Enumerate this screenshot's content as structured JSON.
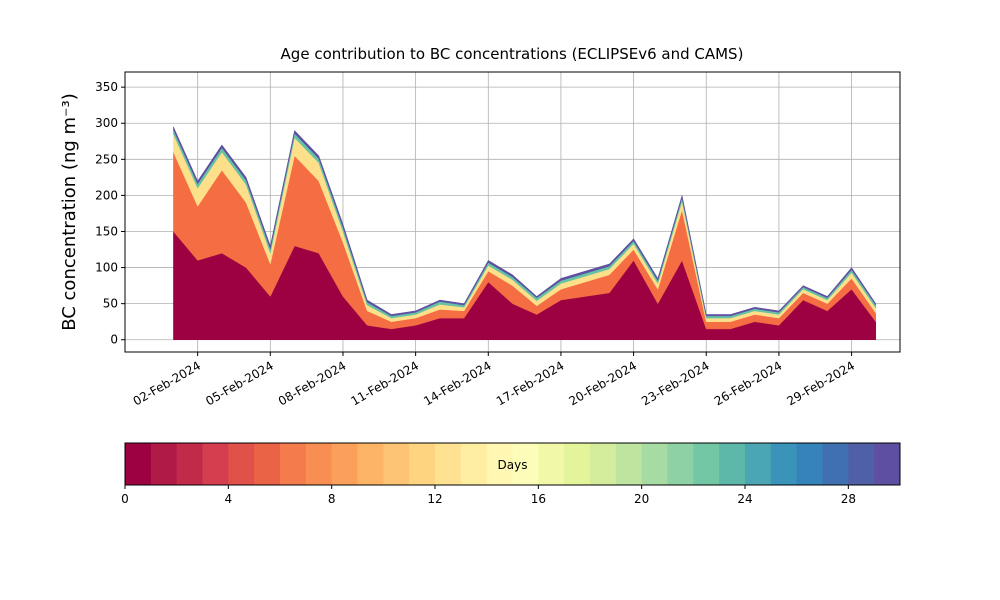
{
  "chart_data": {
    "type": "stacked_area",
    "title": "Age contribution to BC concentrations (ECLIPSEv6 and CAMS)",
    "y_label": "BC concentration (ng m⁻³)",
    "x": [
      "2024-02-01",
      "2024-02-02",
      "2024-02-03",
      "2024-02-04",
      "2024-02-05",
      "2024-02-06",
      "2024-02-07",
      "2024-02-08",
      "2024-02-09",
      "2024-02-10",
      "2024-02-11",
      "2024-02-12",
      "2024-02-13",
      "2024-02-14",
      "2024-02-15",
      "2024-02-16",
      "2024-02-17",
      "2024-02-18",
      "2024-02-19",
      "2024-02-20",
      "2024-02-21",
      "2024-02-22",
      "2024-02-23",
      "2024-02-24",
      "2024-02-25",
      "2024-02-26",
      "2024-02-27",
      "2024-02-28",
      "2024-02-29",
      "2024-03-01"
    ],
    "series": [
      {
        "color": "#9e0142",
        "values": [
          150,
          110,
          120,
          100,
          60,
          130,
          120,
          60,
          20,
          15,
          20,
          30,
          30,
          80,
          50,
          35,
          55,
          60,
          65,
          110,
          50,
          110,
          15,
          15,
          25,
          20,
          55,
          40,
          70,
          25
        ]
      },
      {
        "color": "#f46d43",
        "values": [
          110,
          75,
          115,
          90,
          45,
          125,
          100,
          75,
          20,
          10,
          10,
          12,
          10,
          15,
          25,
          12,
          15,
          20,
          25,
          15,
          20,
          70,
          10,
          10,
          10,
          10,
          10,
          10,
          15,
          12
        ]
      },
      {
        "color": "#fee08b",
        "values": [
          25,
          25,
          25,
          25,
          15,
          25,
          25,
          15,
          8,
          5,
          5,
          7,
          5,
          8,
          8,
          7,
          8,
          8,
          8,
          8,
          8,
          12,
          5,
          5,
          5,
          5,
          5,
          5,
          8,
          7
        ]
      },
      {
        "color": "#66c2a5",
        "values": [
          6,
          6,
          6,
          6,
          6,
          6,
          6,
          6,
          4,
          3,
          3,
          4,
          3,
          4,
          4,
          4,
          4,
          4,
          4,
          4,
          4,
          5,
          3,
          3,
          3,
          3,
          3,
          3,
          4,
          4
        ]
      },
      {
        "color": "#5e4fa2",
        "values": [
          4,
          4,
          4,
          4,
          4,
          4,
          4,
          4,
          3,
          2,
          2,
          2,
          2,
          3,
          3,
          2,
          3,
          3,
          3,
          3,
          3,
          3,
          2,
          2,
          2,
          2,
          2,
          2,
          3,
          2
        ]
      }
    ],
    "xlim": [
      "2024-01-30",
      "2024-03-02"
    ],
    "xticks": [
      {
        "value": "2024-02-02",
        "label": "02-Feb-2024"
      },
      {
        "value": "2024-02-05",
        "label": "05-Feb-2024"
      },
      {
        "value": "2024-02-08",
        "label": "08-Feb-2024"
      },
      {
        "value": "2024-02-11",
        "label": "11-Feb-2024"
      },
      {
        "value": "2024-02-14",
        "label": "14-Feb-2024"
      },
      {
        "value": "2024-02-17",
        "label": "17-Feb-2024"
      },
      {
        "value": "2024-02-20",
        "label": "20-Feb-2024"
      },
      {
        "value": "2024-02-23",
        "label": "23-Feb-2024"
      },
      {
        "value": "2024-02-26",
        "label": "26-Feb-2024"
      },
      {
        "value": "2024-02-29",
        "label": "29-Feb-2024"
      }
    ],
    "ylim": [
      -17,
      371
    ],
    "yticks": [
      0,
      50,
      100,
      150,
      200,
      250,
      300,
      350
    ],
    "grid": true,
    "colorbar": {
      "label": "Days",
      "lim": [
        0,
        30
      ],
      "ticks": [
        0,
        4,
        8,
        12,
        16,
        20,
        24,
        28
      ],
      "colors": [
        "#9e0142",
        "#b01a46",
        "#c22a4a",
        "#d53e4f",
        "#e0514a",
        "#ea6346",
        "#f47b4c",
        "#f88e52",
        "#fba05b",
        "#fdb466",
        "#fdc473",
        "#fed481",
        "#fee291",
        "#feeea1",
        "#fff7b2",
        "#fbfdb8",
        "#f1f9a9",
        "#e4f49b",
        "#d3ed9c",
        "#bde5a0",
        "#a6dba4",
        "#8ed1a4",
        "#74c7a5",
        "#5db8a9",
        "#4aa6b2",
        "#3a93b8",
        "#3682ba",
        "#4170b0",
        "#5060a8",
        "#5e4fa2"
      ]
    }
  }
}
